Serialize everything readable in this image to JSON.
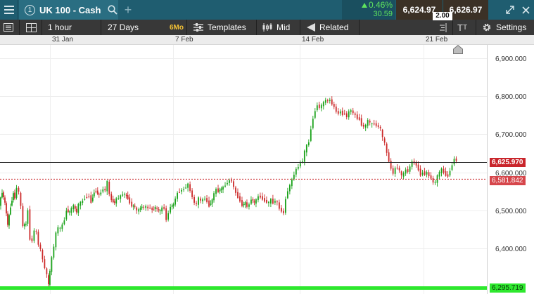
{
  "header": {
    "tab_number": "1",
    "instrument": "UK 100 - Cash",
    "change_percent": "0.46%",
    "change_points": "30.59",
    "sell_price": "6,624.97",
    "buy_price": "6,626.97",
    "spread": "2.00",
    "colors": {
      "up": "#5ee25e",
      "topbar": "#1f5d70",
      "price_box": "#3b3126"
    }
  },
  "toolbar": {
    "interval": "1 hour",
    "range": "27 Days",
    "range_badge": "6Mo",
    "templates": "Templates",
    "price_type": "Mid",
    "related": "Related",
    "settings": "Settings",
    "icons": [
      "list-icon",
      "layout-icon",
      "templates-icon",
      "candlestick-icon",
      "related-icon",
      "align-icon",
      "text-size-icon",
      "gear-icon"
    ]
  },
  "chart_data": {
    "type": "candlestick",
    "instrument": "UK 100 - Cash",
    "interval": "1 hour",
    "x_ticks": [
      "31 Jan",
      "7 Feb",
      "14 Feb",
      "21 Feb"
    ],
    "y_ticks": [
      "6,900.000",
      "6,800.000",
      "6,700.000",
      "6,600.000",
      "6,500.000",
      "6,400.000"
    ],
    "ylim": [
      6280,
      6935
    ],
    "grid": true,
    "current_price": 6625.97,
    "current_price_label": "6,625.970",
    "dashed_level": 6581.842,
    "dashed_level_label": "6,581.842",
    "low_level": 6295.719,
    "low_level_label": "6,295.719",
    "close_path": [
      [
        0,
        6515
      ],
      [
        4,
        6548
      ],
      [
        8,
        6520
      ],
      [
        12,
        6462
      ],
      [
        16,
        6510
      ],
      [
        20,
        6545
      ],
      [
        22,
        6532
      ],
      [
        25,
        6560
      ],
      [
        28,
        6548
      ],
      [
        31,
        6510
      ],
      [
        34,
        6460
      ],
      [
        38,
        6465
      ],
      [
        41,
        6500
      ],
      [
        44,
        6425
      ],
      [
        47,
        6420
      ],
      [
        50,
        6447
      ],
      [
        53,
        6443
      ],
      [
        56,
        6410
      ],
      [
        59,
        6398
      ],
      [
        62,
        6370
      ],
      [
        65,
        6350
      ],
      [
        68,
        6330
      ],
      [
        70,
        6305
      ],
      [
        72,
        6340
      ],
      [
        75,
        6375
      ],
      [
        78,
        6405
      ],
      [
        81,
        6440
      ],
      [
        84,
        6455
      ],
      [
        87,
        6452
      ],
      [
        90,
        6462
      ],
      [
        93,
        6475
      ],
      [
        96,
        6500
      ],
      [
        100,
        6495
      ],
      [
        103,
        6505
      ],
      [
        106,
        6512
      ],
      [
        110,
        6495
      ],
      [
        113,
        6515
      ],
      [
        116,
        6520
      ],
      [
        119,
        6525
      ],
      [
        122,
        6532
      ],
      [
        125,
        6535
      ],
      [
        128,
        6537
      ],
      [
        131,
        6522
      ],
      [
        135,
        6548
      ],
      [
        138,
        6550
      ],
      [
        142,
        6540
      ],
      [
        145,
        6548
      ],
      [
        148,
        6556
      ],
      [
        151,
        6553
      ],
      [
        154,
        6575
      ],
      [
        157,
        6543
      ],
      [
        160,
        6527
      ],
      [
        164,
        6520
      ],
      [
        167,
        6530
      ],
      [
        170,
        6533
      ],
      [
        173,
        6537
      ],
      [
        176,
        6543
      ],
      [
        179,
        6542
      ],
      [
        183,
        6532
      ],
      [
        186,
        6520
      ],
      [
        189,
        6512
      ],
      [
        193,
        6510
      ],
      [
        196,
        6498
      ],
      [
        199,
        6502
      ],
      [
        203,
        6510
      ],
      [
        206,
        6508
      ],
      [
        209,
        6510
      ],
      [
        212,
        6505
      ],
      [
        215,
        6508
      ],
      [
        218,
        6500
      ],
      [
        222,
        6508
      ],
      [
        225,
        6503
      ],
      [
        229,
        6498
      ],
      [
        232,
        6507
      ],
      [
        235,
        6505
      ],
      [
        238,
        6475
      ],
      [
        241,
        6493
      ],
      [
        244,
        6510
      ],
      [
        248,
        6515
      ],
      [
        251,
        6531
      ],
      [
        254,
        6545
      ],
      [
        257,
        6550
      ],
      [
        260,
        6553
      ],
      [
        263,
        6556
      ],
      [
        266,
        6562
      ],
      [
        269,
        6568
      ],
      [
        272,
        6552
      ],
      [
        275,
        6535
      ],
      [
        278,
        6520
      ],
      [
        281,
        6517
      ],
      [
        284,
        6532
      ],
      [
        287,
        6525
      ],
      [
        290,
        6528
      ],
      [
        293,
        6531
      ],
      [
        296,
        6523
      ],
      [
        299,
        6512
      ],
      [
        303,
        6527
      ],
      [
        306,
        6545
      ],
      [
        309,
        6555
      ],
      [
        312,
        6550
      ],
      [
        316,
        6557
      ],
      [
        319,
        6560
      ],
      [
        322,
        6567
      ],
      [
        325,
        6573
      ],
      [
        328,
        6578
      ],
      [
        331,
        6577
      ],
      [
        334,
        6561
      ],
      [
        337,
        6545
      ],
      [
        340,
        6535
      ],
      [
        343,
        6525
      ],
      [
        346,
        6513
      ],
      [
        350,
        6520
      ],
      [
        353,
        6510
      ],
      [
        356,
        6515
      ],
      [
        359,
        6530
      ],
      [
        363,
        6520
      ],
      [
        366,
        6527
      ],
      [
        369,
        6537
      ],
      [
        372,
        6535
      ],
      [
        375,
        6530
      ],
      [
        378,
        6525
      ],
      [
        381,
        6522
      ],
      [
        384,
        6520
      ],
      [
        387,
        6528
      ],
      [
        390,
        6520
      ],
      [
        393,
        6525
      ],
      [
        396,
        6520
      ],
      [
        399,
        6505
      ],
      [
        402,
        6498
      ],
      [
        405,
        6493
      ],
      [
        408,
        6530
      ],
      [
        411,
        6552
      ],
      [
        414,
        6565
      ],
      [
        417,
        6580
      ],
      [
        420,
        6595
      ],
      [
        423,
        6608
      ],
      [
        426,
        6615
      ],
      [
        429,
        6625
      ],
      [
        432,
        6630
      ],
      [
        435,
        6655
      ],
      [
        438,
        6670
      ],
      [
        441,
        6680
      ],
      [
        444,
        6715
      ],
      [
        447,
        6742
      ],
      [
        450,
        6762
      ],
      [
        453,
        6777
      ],
      [
        456,
        6770
      ],
      [
        459,
        6776
      ],
      [
        462,
        6783
      ],
      [
        465,
        6790
      ],
      [
        468,
        6788
      ],
      [
        471,
        6790
      ],
      [
        474,
        6780
      ],
      [
        477,
        6772
      ],
      [
        480,
        6760
      ],
      [
        483,
        6755
      ],
      [
        486,
        6760
      ],
      [
        489,
        6752
      ],
      [
        492,
        6755
      ],
      [
        495,
        6745
      ],
      [
        498,
        6760
      ],
      [
        501,
        6762
      ],
      [
        504,
        6756
      ],
      [
        507,
        6750
      ],
      [
        510,
        6742
      ],
      [
        513,
        6740
      ],
      [
        516,
        6725
      ],
      [
        519,
        6720
      ],
      [
        522,
        6723
      ],
      [
        525,
        6737
      ],
      [
        528,
        6730
      ],
      [
        531,
        6726
      ],
      [
        534,
        6728
      ],
      [
        537,
        6723
      ],
      [
        540,
        6720
      ],
      [
        543,
        6715
      ],
      [
        546,
        6690
      ],
      [
        549,
        6677
      ],
      [
        552,
        6650
      ],
      [
        555,
        6630
      ],
      [
        558,
        6610
      ],
      [
        561,
        6597
      ],
      [
        564,
        6610
      ],
      [
        567,
        6612
      ],
      [
        570,
        6605
      ],
      [
        573,
        6590
      ],
      [
        576,
        6597
      ],
      [
        579,
        6607
      ],
      [
        582,
        6602
      ],
      [
        585,
        6615
      ],
      [
        588,
        6628
      ],
      [
        591,
        6625
      ],
      [
        594,
        6618
      ],
      [
        597,
        6607
      ],
      [
        600,
        6593
      ],
      [
        603,
        6600
      ],
      [
        606,
        6595
      ],
      [
        609,
        6600
      ],
      [
        612,
        6590
      ],
      [
        615,
        6585
      ],
      [
        618,
        6573
      ],
      [
        621,
        6575
      ],
      [
        624,
        6590
      ],
      [
        627,
        6600
      ],
      [
        630,
        6608
      ],
      [
        633,
        6600
      ],
      [
        636,
        6593
      ],
      [
        639,
        6590
      ],
      [
        642,
        6605
      ],
      [
        645,
        6620
      ],
      [
        648,
        6636
      ],
      [
        651,
        6630
      ]
    ]
  }
}
